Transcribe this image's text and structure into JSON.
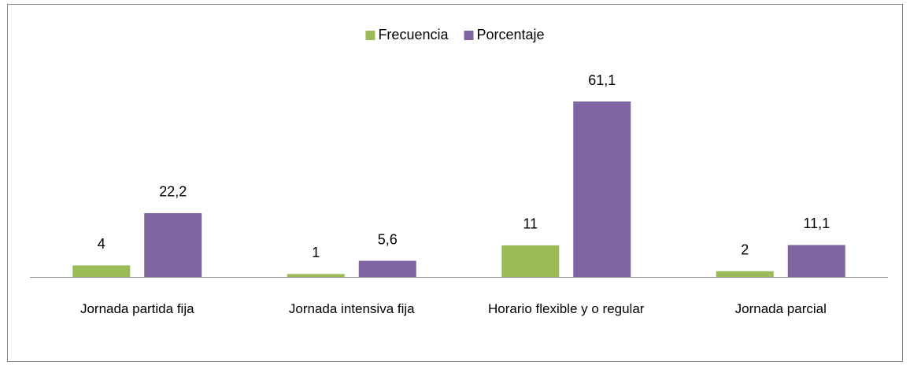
{
  "chart_data": {
    "type": "bar",
    "categories": [
      "Jornada partida fija",
      "Jornada intensiva fija",
      "Horario flexible y o regular",
      "Jornada parcial"
    ],
    "series": [
      {
        "name": "Frecuencia",
        "color": "#9bbb59",
        "values": [
          4,
          1,
          11,
          2
        ]
      },
      {
        "name": "Porcentaje",
        "color": "#8064a2",
        "values": [
          22.2,
          5.6,
          61.1,
          11.1
        ],
        "value_labels": [
          "22,2",
          "5,6",
          "61,1",
          "11,1"
        ]
      }
    ],
    "legend": "top"
  }
}
